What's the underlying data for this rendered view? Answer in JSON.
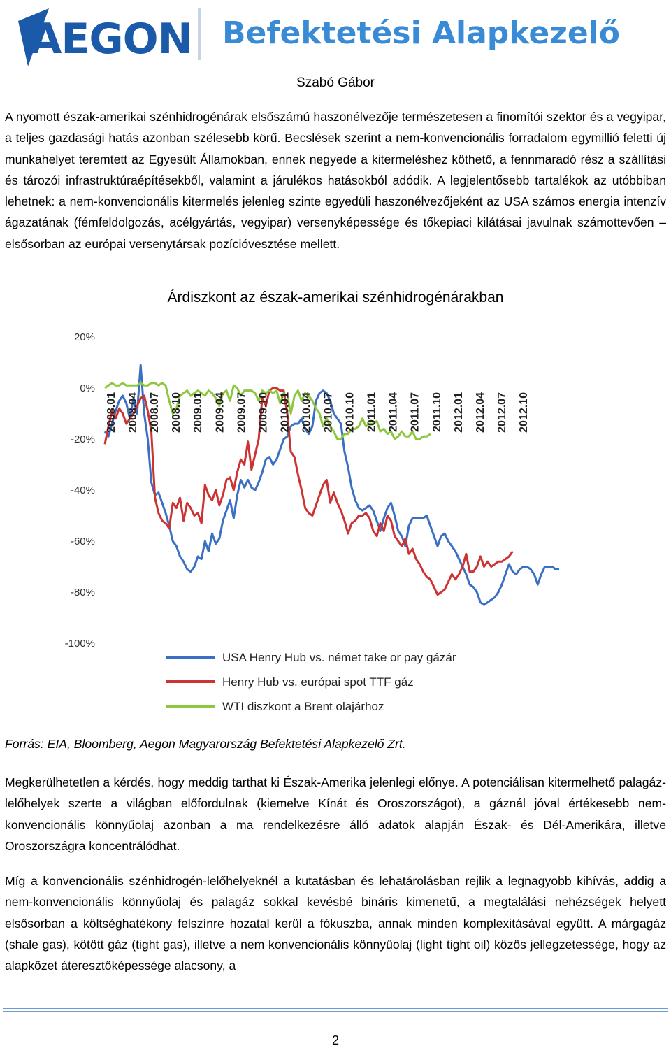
{
  "header": {
    "logo_text": "AEGON",
    "company_name": "Befektetési Alapkezelő",
    "colors": {
      "logo": "#1a5aa8",
      "company": "#3a8bd6"
    }
  },
  "author": "Szabó Gábor",
  "paragraphs": [
    "A nyomott észak-amerikai szénhidrogénárak elsőszámú haszonélvezője természetesen a finomítói szektor és a vegyipar, a teljes gazdasági hatás azonban szélesebb körű. Becslések szerint a nem-konvencionális forradalom egymillió feletti új munkahelyet teremtett az Egyesült Államokban, ennek negyede a kitermeléshez köthető, a fennmaradó rész a szállítási és tározói infrastruktúraépítésekből, valamint a járulékos hatásokból adódik. A legjelentősebb tartalékok az utóbbiban lehetnek: a nem-konvencionális kitermelés jelenleg szinte egyedüli haszonélvezőjeként az USA számos energia intenzív ágazatának (fémfeldolgozás, acélgyártás, vegyipar) versenyképessége és tőkepiaci kilátásai javulnak számottevően – elsősorban az európai versenytársak pozícióvesztése mellett.",
    "Megkerülhetetlen a kérdés, hogy meddig tarthat ki Észak-Amerika jelenlegi előnye. A potenciálisan kitermelhető palagáz-lelőhelyek szerte a világban előfordulnak (kiemelve Kínát és Oroszországot), a gáznál jóval értékesebb nem-konvencionális könnyűolaj azonban a ma rendelkezésre álló adatok alapján Észak- és Dél-Amerikára, illetve Oroszországra koncentrálódhat.",
    "Míg a konvencionális szénhidrogén-lelőhelyeknél a kutatásban és lehatárolásban rejlik a legnagyobb kihívás, addig a nem-konvencionális könnyűolaj és palagáz sokkal kevésbé bináris kimenetű, a megtalálási nehézségek helyett elsősorban a költséghatékony felszínre hozatal kerül a fókuszba, annak minden komplexitásával együtt. A márgagáz (shale gas), kötött gáz (tight gas), illetve a nem konvencionális könnyűolaj (light tight oil) közös jellegzetessége, hogy az alapkőzet áteresztőképessége alacsony, a"
  ],
  "chart_title": "Árdiszkont az észak-amerikai szénhidrogénárakban",
  "source": "Forrás: EIA, Bloomberg, Aegon Magyarország Befektetési Alapkezelő Zrt.",
  "page_number": "2",
  "chart_data": {
    "type": "line",
    "title": "Árdiszkont az észak-amerikai szénhidrogénárakban",
    "ylim": [
      -100,
      20
    ],
    "yticks": [
      20,
      0,
      -20,
      -40,
      -60,
      -80,
      -100
    ],
    "ytick_labels": [
      "20%",
      "0%",
      "-20%",
      "-40%",
      "-60%",
      "-80%",
      "-100%"
    ],
    "x_labels": [
      "2008.01",
      "2008.04",
      "2008.07",
      "2008.10",
      "2009.01",
      "2009.04",
      "2009.07",
      "2009.10",
      "2010.01",
      "2010.04",
      "2010.07",
      "2010.10",
      "2011.01",
      "2011.04",
      "2011.07",
      "2011.10",
      "2012.01",
      "2012.04",
      "2012.07",
      "2012.10"
    ],
    "x_start": "2008.01",
    "grid": false,
    "legend_position": "bottom",
    "series": [
      {
        "name": "USA Henry Hub vs. német take or pay gázár",
        "color": "#3a6fc4",
        "values": [
          -17,
          -19,
          -14,
          -9,
          -5,
          -3,
          -6,
          -12,
          -4,
          -10,
          9,
          -10,
          -20,
          -37,
          -42,
          -41,
          -45,
          -49,
          -54,
          -60,
          -62,
          -66,
          -68,
          -71,
          -72,
          -70,
          -66,
          -67,
          -60,
          -64,
          -57,
          -61,
          -59,
          -52,
          -48,
          -44,
          -51,
          -42,
          -36,
          -39,
          -36,
          -39,
          -40,
          -37,
          -33,
          -28,
          -27,
          -30,
          -28,
          -24,
          -20,
          -19,
          -15,
          -14,
          -14,
          -12,
          -16,
          -18,
          -15,
          -5,
          -2,
          -1,
          -2,
          -5,
          -10,
          -12,
          -14,
          -25,
          -31,
          -39,
          -44,
          -47,
          -48,
          -47,
          -46,
          -48,
          -52,
          -56,
          -51,
          -47,
          -45,
          -50,
          -56,
          -58,
          -62,
          -54,
          -51,
          -51,
          -51,
          -51,
          -50,
          -54,
          -58,
          -62,
          -58,
          -57,
          -60,
          -62,
          -64,
          -67,
          -70,
          -73,
          -77,
          -78,
          -80,
          -84,
          -85,
          -84,
          -83,
          -82,
          -80,
          -77,
          -73,
          -69,
          -72,
          -73,
          -71,
          -70,
          -70,
          -71,
          -73,
          -77,
          -73,
          -70,
          -70,
          -70,
          -71,
          -71
        ],
        "values_note": ""
      },
      {
        "name": "Henry Hub vs. európai spot TTF gáz",
        "color": "#cc3333",
        "values": [
          -22,
          -15,
          -9,
          -12,
          -8,
          -10,
          -14,
          -12,
          -10,
          -7,
          -4,
          -3,
          -9,
          -17,
          -43,
          -49,
          -52,
          -53,
          -55,
          -45,
          -47,
          -43,
          -52,
          -45,
          -47,
          -50,
          -49,
          -53,
          -38,
          -42,
          -44,
          -40,
          -46,
          -42,
          -36,
          -35,
          -40,
          -33,
          -28,
          -30,
          -21,
          -32,
          -26,
          -20,
          -4,
          -7,
          -1,
          0,
          0,
          -1,
          -1,
          -10,
          -25,
          -27,
          -34,
          -40,
          -47,
          -49,
          -50,
          -46,
          -42,
          -38,
          -36,
          -45,
          -41,
          -45,
          -48,
          -52,
          -57,
          -53,
          -52,
          -50,
          -50,
          -49,
          -51,
          -56,
          -58,
          -53,
          -56,
          -50,
          -52,
          -58,
          -60,
          -62,
          -59,
          -65,
          -63,
          -67,
          -69,
          -72,
          -74,
          -75,
          -78,
          -81,
          -80,
          -79,
          -76,
          -73,
          -75,
          -73,
          -70,
          -65,
          -72,
          -72,
          -70,
          -66,
          -70,
          -68,
          -70,
          -69,
          -68,
          -68,
          -67,
          -66,
          -64
        ],
        "values_note": ""
      },
      {
        "name": "WTI diszkont a Brent olajárhoz",
        "color": "#8dc63f",
        "values": [
          0,
          1,
          2,
          1,
          1,
          2,
          1,
          1,
          1,
          1,
          2,
          1,
          1,
          2,
          2,
          1,
          2,
          1,
          -5,
          -10,
          -8,
          -3,
          -2,
          -1,
          -3,
          -2,
          -1,
          -2,
          -3,
          -1,
          -2,
          -4,
          -7,
          -2,
          -1,
          -5,
          1,
          0,
          -3,
          -1,
          -1,
          -1,
          -2,
          -5,
          -1,
          -2,
          -1,
          -2,
          -1,
          -6,
          -2,
          -3,
          -10,
          -3,
          -1,
          -5,
          -2,
          -3,
          -5,
          -8,
          -10,
          -15,
          -12,
          -15,
          -17,
          -20,
          -20,
          -18,
          -18,
          -16,
          -16,
          -15,
          -12,
          -15,
          -14,
          -14,
          -13,
          -17,
          -16,
          -18,
          -17,
          -20,
          -19,
          -17,
          -19,
          -19,
          -17,
          -20,
          -20,
          -19,
          -19,
          -18
        ],
        "values_note": ""
      }
    ]
  }
}
